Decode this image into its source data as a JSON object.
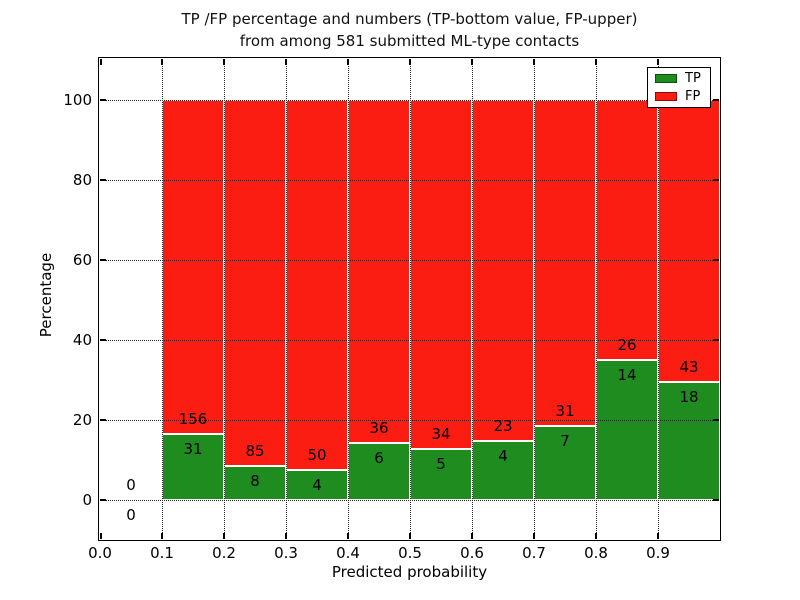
{
  "chart_data": {
    "type": "bar",
    "stacked": true,
    "normalized": "each bar stacks TP+FP to 100%",
    "title_line1": "TP /FP percentage and numbers (TP-bottom value, FP-upper)",
    "title_line2": "from among 581 submitted ML-type contacts",
    "xlabel": "Predicted probability",
    "ylabel": "Percentage",
    "xlim": [
      0.0,
      1.0
    ],
    "ylim": [
      -10,
      110
    ],
    "grid": true,
    "total_contacts": 581,
    "xticks": [
      {
        "v": 0.0,
        "label": "0.0"
      },
      {
        "v": 0.1,
        "label": "0.1"
      },
      {
        "v": 0.2,
        "label": "0.2"
      },
      {
        "v": 0.3,
        "label": "0.3"
      },
      {
        "v": 0.4,
        "label": "0.4"
      },
      {
        "v": 0.5,
        "label": "0.5"
      },
      {
        "v": 0.6,
        "label": "0.6"
      },
      {
        "v": 0.7,
        "label": "0.7"
      },
      {
        "v": 0.8,
        "label": "0.8"
      },
      {
        "v": 0.9,
        "label": "0.9"
      }
    ],
    "yticks": [
      {
        "v": 0,
        "label": "0"
      },
      {
        "v": 20,
        "label": "20"
      },
      {
        "v": 40,
        "label": "40"
      },
      {
        "v": 60,
        "label": "60"
      },
      {
        "v": 80,
        "label": "80"
      },
      {
        "v": 100,
        "label": "100"
      }
    ],
    "bins": [
      {
        "x0": 0.0,
        "x1": 0.1,
        "tp": 0,
        "fp": 0
      },
      {
        "x0": 0.1,
        "x1": 0.2,
        "tp": 31,
        "fp": 156
      },
      {
        "x0": 0.2,
        "x1": 0.3,
        "tp": 8,
        "fp": 85
      },
      {
        "x0": 0.3,
        "x1": 0.4,
        "tp": 4,
        "fp": 50
      },
      {
        "x0": 0.4,
        "x1": 0.5,
        "tp": 6,
        "fp": 36
      },
      {
        "x0": 0.5,
        "x1": 0.6,
        "tp": 5,
        "fp": 34
      },
      {
        "x0": 0.6,
        "x1": 0.7,
        "tp": 4,
        "fp": 23
      },
      {
        "x0": 0.7,
        "x1": 0.8,
        "tp": 7,
        "fp": 31
      },
      {
        "x0": 0.8,
        "x1": 0.9,
        "tp": 14,
        "fp": 26
      },
      {
        "x0": 0.9,
        "x1": 1.0,
        "tp": 18,
        "fp": 43
      }
    ],
    "series": [
      {
        "name": "TP",
        "color": "#1e8c1e",
        "values": [
          0,
          31,
          8,
          4,
          6,
          5,
          4,
          7,
          14,
          18
        ]
      },
      {
        "name": "FP",
        "color": "#fb1d12",
        "values": [
          0,
          156,
          85,
          50,
          36,
          34,
          23,
          31,
          26,
          43
        ]
      }
    ],
    "legend": {
      "position": "upper right",
      "entries": [
        {
          "label": "TP",
          "color": "#1e8c1e"
        },
        {
          "label": "FP",
          "color": "#fb1d12"
        }
      ]
    }
  }
}
